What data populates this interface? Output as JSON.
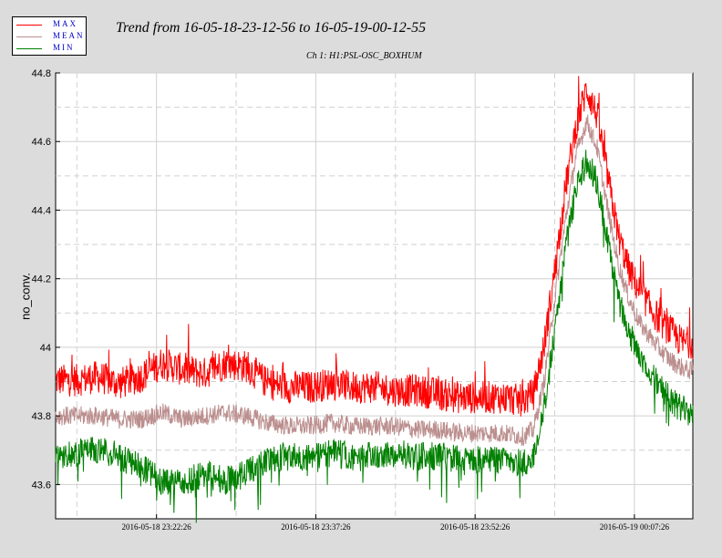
{
  "title": "Trend from 16-05-18-23-12-56 to 16-05-19-00-12-55",
  "subtitle": "Ch 1: H1:PSL-OSC_BOXHUM",
  "legend": [
    {
      "label": "MAX",
      "color": "#ff0000"
    },
    {
      "label": "MEAN",
      "color": "#bc8f8f"
    },
    {
      "label": "MIN",
      "color": "#008000"
    }
  ],
  "chart_data": {
    "type": "line",
    "ylabel": "no_conv.",
    "xlabel": "",
    "ylim": [
      43.5,
      44.8
    ],
    "y_ticks": [
      "43.6",
      "43.8",
      "44",
      "44.2",
      "44.4",
      "44.6",
      "44.8"
    ],
    "x_ticks": [
      "2016-05-18 23:22:26",
      "2016-05-18 23:37:26",
      "2016-05-18 23:52:26",
      "2016-05-19 00:07:26"
    ],
    "x_start": "2016-05-18 23:12:56",
    "x_end": "2016-05-19 00:12:55",
    "grid": true,
    "series": [
      {
        "name": "MAX",
        "color": "#ff0000",
        "x_minutes": [
          0,
          2,
          4,
          6,
          8,
          10,
          12,
          14,
          16,
          18,
          20,
          22,
          24,
          26,
          28,
          30,
          32,
          34,
          36,
          38,
          40,
          42,
          44,
          45,
          46,
          47,
          48,
          49,
          50,
          51,
          52,
          53,
          54,
          55,
          56,
          57,
          58,
          59,
          60
        ],
        "values": [
          43.88,
          43.88,
          43.89,
          43.87,
          43.89,
          43.93,
          43.91,
          43.9,
          43.93,
          43.92,
          43.87,
          43.86,
          43.86,
          43.87,
          43.86,
          43.86,
          43.85,
          43.85,
          43.84,
          43.83,
          43.83,
          43.83,
          43.82,
          43.84,
          43.98,
          44.2,
          44.44,
          44.62,
          44.73,
          44.65,
          44.47,
          44.3,
          44.2,
          44.14,
          44.09,
          44.05,
          44.02,
          43.99,
          43.99
        ]
      },
      {
        "name": "MEAN",
        "color": "#bc8f8f",
        "x_minutes": [
          0,
          2,
          4,
          6,
          8,
          10,
          12,
          14,
          16,
          18,
          20,
          22,
          24,
          26,
          28,
          30,
          32,
          34,
          36,
          38,
          40,
          42,
          44,
          45,
          46,
          47,
          48,
          49,
          50,
          51,
          52,
          53,
          54,
          55,
          56,
          57,
          58,
          59,
          60
        ],
        "values": [
          43.8,
          43.8,
          43.8,
          43.79,
          43.79,
          43.81,
          43.79,
          43.8,
          43.81,
          43.8,
          43.78,
          43.77,
          43.77,
          43.78,
          43.77,
          43.77,
          43.77,
          43.76,
          43.76,
          43.75,
          43.75,
          43.75,
          43.74,
          43.76,
          43.9,
          44.14,
          44.37,
          44.56,
          44.66,
          44.58,
          44.4,
          44.24,
          44.14,
          44.07,
          44.03,
          43.99,
          43.96,
          43.94,
          43.93
        ]
      },
      {
        "name": "MIN",
        "color": "#008000",
        "x_minutes": [
          0,
          2,
          4,
          6,
          8,
          10,
          12,
          14,
          16,
          18,
          20,
          22,
          24,
          26,
          28,
          30,
          32,
          34,
          36,
          38,
          40,
          42,
          44,
          45,
          46,
          47,
          48,
          49,
          50,
          51,
          52,
          53,
          54,
          55,
          56,
          57,
          58,
          59,
          60
        ],
        "values": [
          43.7,
          43.71,
          43.72,
          43.7,
          43.67,
          43.63,
          43.62,
          43.65,
          43.63,
          43.65,
          43.69,
          43.7,
          43.7,
          43.71,
          43.7,
          43.7,
          43.71,
          43.7,
          43.7,
          43.69,
          43.69,
          43.69,
          43.68,
          43.7,
          43.84,
          44.06,
          44.3,
          44.48,
          44.56,
          44.5,
          44.32,
          44.16,
          44.06,
          43.99,
          43.95,
          43.9,
          43.86,
          43.84,
          43.82
        ]
      }
    ]
  }
}
